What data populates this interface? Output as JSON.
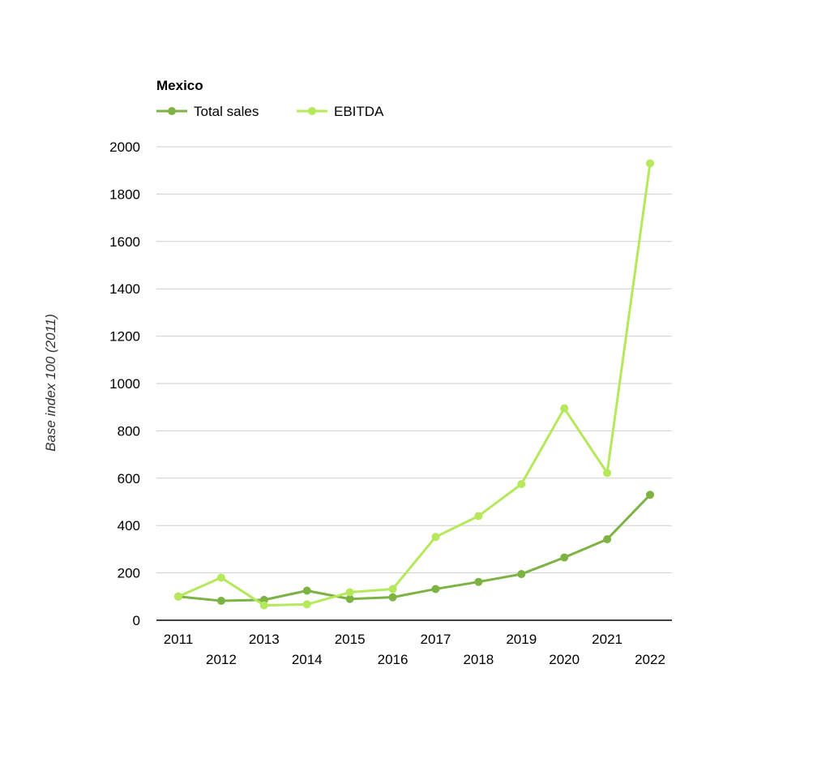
{
  "chart_data": {
    "type": "line",
    "title": "Mexico",
    "xlabel": "",
    "ylabel": "Base index 100 (2011)",
    "x": [
      "2011",
      "2012",
      "2013",
      "2014",
      "2015",
      "2016",
      "2017",
      "2018",
      "2019",
      "2020",
      "2021",
      "2022"
    ],
    "ylim": [
      0,
      2000
    ],
    "yticks": [
      "0",
      "200",
      "400",
      "600",
      "800",
      "1000",
      "1200",
      "1400",
      "1600",
      "1800",
      "2000"
    ],
    "grid": true,
    "legend_position": "top-left",
    "series": [
      {
        "name": "Total sales",
        "color": "#7cb342",
        "values": [
          100,
          82,
          86,
          125,
          90,
          97,
          132,
          162,
          195,
          265,
          342,
          530
        ]
      },
      {
        "name": "EBITDA",
        "color": "#b5e85a",
        "values": [
          100,
          180,
          63,
          67,
          118,
          132,
          352,
          440,
          575,
          895,
          622,
          1930
        ]
      }
    ]
  }
}
